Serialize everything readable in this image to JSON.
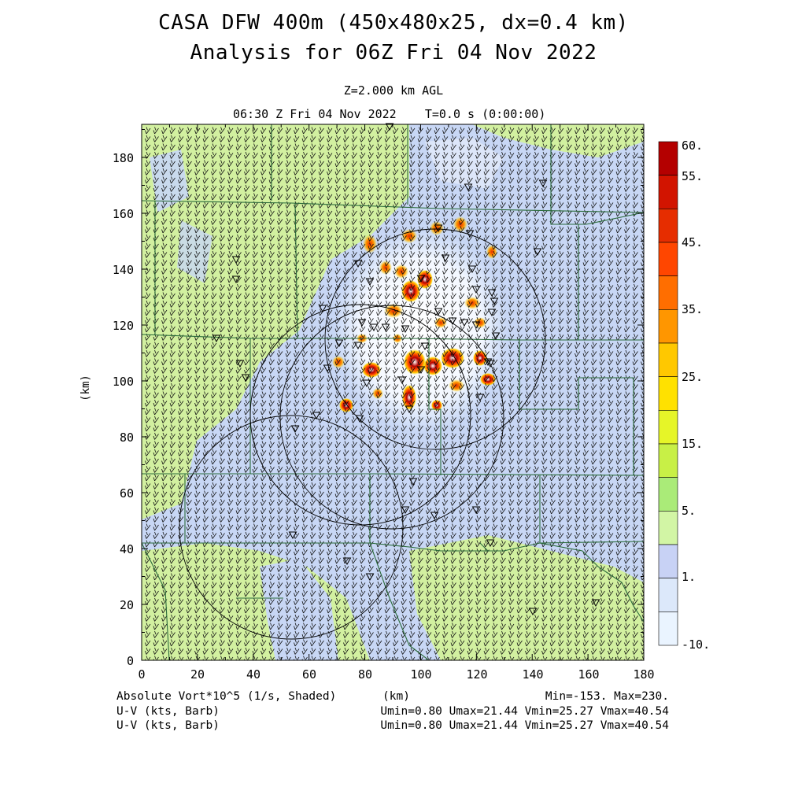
{
  "titles": {
    "line1": "CASA DFW 400m (450x480x25, dx=0.4 km)",
    "line2": "Analysis for 06Z Fri 04 Nov 2022",
    "level": "Z=2.000 km AGL",
    "valid_time": "06:30 Z Fri 04 Nov 2022    T=0.0 s (0:00:00)"
  },
  "axes": {
    "x_ticks": [
      "0",
      "20",
      "40",
      "60",
      "80",
      "100",
      "120",
      "140",
      "160",
      "180"
    ],
    "y_ticks": [
      "0",
      "20",
      "40",
      "60",
      "80",
      "100",
      "120",
      "140",
      "160",
      "180"
    ],
    "x_label": "(km)",
    "y_label": "(km)",
    "x_range_km": [
      0,
      180
    ],
    "y_range_km": [
      0,
      192
    ]
  },
  "colorbar": {
    "labels": [
      "60.",
      "55.",
      "45.",
      "35.",
      "25.",
      "15.",
      "5.",
      "1.",
      "-10."
    ],
    "colors": [
      "#b40000",
      "#d21400",
      "#e62d00",
      "#ff4600",
      "#ff6e00",
      "#ff9600",
      "#ffc800",
      "#ffe100",
      "#e6f528",
      "#c8f046",
      "#aaeb78",
      "#d2f5a5",
      "#c8d2f5",
      "#dce8fa",
      "#eaf4ff"
    ]
  },
  "footer": {
    "field_label": "Absolute Vort*10^5 (1/s, Shaded)",
    "x_units": "(km)",
    "min_max": "Min=-153. Max=230.",
    "barb_label_1": "U-V (kts, Barb)",
    "barb_label_2": "U-V (kts, Barb)",
    "barb_stats_1": "Umin=0.80 Umax=21.44 Vmin=25.27 Vmax=40.54",
    "barb_stats_2": "Umin=0.80 Umax=21.44 Vmin=25.27 Vmax=40.54"
  },
  "colors": {
    "background_green": "#d2f0a0",
    "background_blue": "#c8d7f5",
    "boundary": "#2a6a3a",
    "radar_ring": "#000000"
  }
}
